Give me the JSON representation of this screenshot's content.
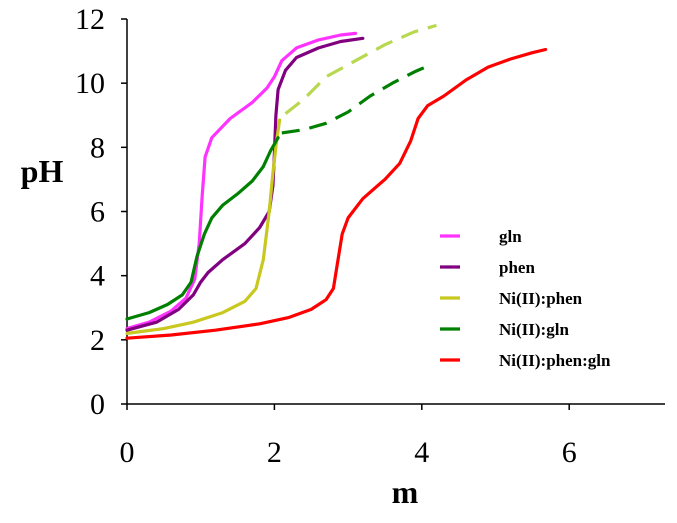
{
  "chart_data": {
    "type": "line",
    "title": "",
    "xlabel": "m",
    "ylabel": "pH",
    "xlim": [
      0,
      7.3
    ],
    "ylim": [
      0,
      12
    ],
    "xticks": [
      0,
      2,
      4,
      6
    ],
    "xtick_labels": [
      "0",
      "2",
      "4",
      "6"
    ],
    "yticks": [
      0,
      2,
      4,
      6,
      8,
      10,
      12
    ],
    "ytick_labels": [
      "0",
      "2",
      "4",
      "6",
      "8",
      "10",
      "12"
    ],
    "grid": false,
    "legend_position": "right",
    "series": [
      {
        "name": "gln",
        "color": "#ff33ff",
        "style": "solid",
        "segments": [
          [
            [
              0.0,
              2.35
            ],
            [
              0.3,
              2.55
            ],
            [
              0.6,
              2.9
            ],
            [
              0.8,
              3.3
            ],
            [
              0.92,
              3.9
            ],
            [
              0.98,
              5.0
            ],
            [
              1.02,
              6.5
            ],
            [
              1.06,
              7.7
            ],
            [
              1.15,
              8.3
            ],
            [
              1.4,
              8.9
            ],
            [
              1.7,
              9.4
            ],
            [
              1.9,
              9.85
            ],
            [
              2.0,
              10.2
            ],
            [
              2.1,
              10.7
            ],
            [
              2.3,
              11.1
            ],
            [
              2.6,
              11.35
            ],
            [
              2.9,
              11.5
            ],
            [
              3.1,
              11.55
            ]
          ]
        ]
      },
      {
        "name": "phen",
        "color": "#800080",
        "style": "solid",
        "segments": [
          [
            [
              0.0,
              2.3
            ],
            [
              0.4,
              2.55
            ],
            [
              0.7,
              2.95
            ],
            [
              0.9,
              3.4
            ],
            [
              1.0,
              3.8
            ],
            [
              1.1,
              4.1
            ],
            [
              1.3,
              4.5
            ],
            [
              1.6,
              5.0
            ],
            [
              1.8,
              5.5
            ],
            [
              1.93,
              6.0
            ],
            [
              1.98,
              6.8
            ],
            [
              2.0,
              7.8
            ],
            [
              2.02,
              9.0
            ],
            [
              2.05,
              9.8
            ],
            [
              2.15,
              10.4
            ],
            [
              2.3,
              10.8
            ],
            [
              2.6,
              11.1
            ],
            [
              2.9,
              11.3
            ],
            [
              3.2,
              11.4
            ]
          ]
        ]
      },
      {
        "name": "Ni(II):phen",
        "color": "#c8c820",
        "style": "solid",
        "segments": [
          [
            [
              0.0,
              2.2
            ],
            [
              0.5,
              2.35
            ],
            [
              0.9,
              2.55
            ],
            [
              1.3,
              2.85
            ],
            [
              1.6,
              3.2
            ],
            [
              1.75,
              3.6
            ],
            [
              1.85,
              4.5
            ],
            [
              1.93,
              6.0
            ],
            [
              1.98,
              7.2
            ],
            [
              2.03,
              8.2
            ],
            [
              2.07,
              8.85
            ]
          ]
        ]
      },
      {
        "name": "Ni(II):phen",
        "color": "#b8d850",
        "style": "dashed",
        "segments": [
          [
            [
              2.15,
              9.05
            ],
            [
              2.4,
              9.5
            ],
            [
              2.7,
              10.2
            ],
            [
              3.1,
              10.7
            ],
            [
              3.5,
              11.2
            ],
            [
              3.9,
              11.6
            ],
            [
              4.2,
              11.8
            ]
          ]
        ]
      },
      {
        "name": "Ni(II):gln",
        "color": "#008000",
        "style": "solid",
        "segments": [
          [
            [
              0.0,
              2.65
            ],
            [
              0.3,
              2.85
            ],
            [
              0.55,
              3.1
            ],
            [
              0.75,
              3.4
            ],
            [
              0.87,
              3.8
            ],
            [
              0.95,
              4.6
            ],
            [
              1.05,
              5.3
            ],
            [
              1.15,
              5.8
            ],
            [
              1.3,
              6.2
            ],
            [
              1.5,
              6.55
            ],
            [
              1.7,
              6.95
            ],
            [
              1.85,
              7.4
            ],
            [
              1.95,
              7.9
            ],
            [
              2.05,
              8.3
            ]
          ]
        ]
      },
      {
        "name": "Ni(II):gln",
        "color": "#008000",
        "style": "dashed",
        "segments": [
          [
            [
              2.1,
              8.45
            ],
            [
              2.4,
              8.55
            ],
            [
              2.7,
              8.75
            ],
            [
              3.0,
              9.1
            ],
            [
              3.3,
              9.6
            ],
            [
              3.6,
              10.0
            ],
            [
              3.9,
              10.35
            ],
            [
              4.15,
              10.6
            ]
          ]
        ]
      },
      {
        "name": "Ni(II):phen:gln",
        "color": "#ff0000",
        "style": "solid",
        "segments": [
          [
            [
              0.0,
              2.05
            ],
            [
              0.6,
              2.15
            ],
            [
              1.2,
              2.3
            ],
            [
              1.8,
              2.5
            ],
            [
              2.2,
              2.7
            ],
            [
              2.5,
              2.95
            ],
            [
              2.7,
              3.25
            ],
            [
              2.8,
              3.6
            ],
            [
              2.85,
              4.3
            ],
            [
              2.92,
              5.3
            ],
            [
              3.0,
              5.8
            ],
            [
              3.2,
              6.4
            ],
            [
              3.5,
              7.0
            ],
            [
              3.7,
              7.5
            ],
            [
              3.85,
              8.2
            ],
            [
              3.95,
              8.9
            ],
            [
              4.08,
              9.3
            ],
            [
              4.3,
              9.6
            ],
            [
              4.6,
              10.1
            ],
            [
              4.9,
              10.5
            ],
            [
              5.2,
              10.75
            ],
            [
              5.5,
              10.95
            ],
            [
              5.68,
              11.05
            ]
          ]
        ]
      }
    ],
    "legend": [
      {
        "label": "gln",
        "color": "#ff33ff",
        "style": "solid"
      },
      {
        "label": "phen",
        "color": "#800080",
        "style": "solid"
      },
      {
        "label": "Ni(II):phen",
        "color": "#c8c820",
        "style": "dashed"
      },
      {
        "label": "Ni(II):gln",
        "color": "#008000",
        "style": "dashed"
      },
      {
        "label": "Ni(II):phen:gln",
        "color": "#ff0000",
        "style": "solid"
      }
    ]
  }
}
